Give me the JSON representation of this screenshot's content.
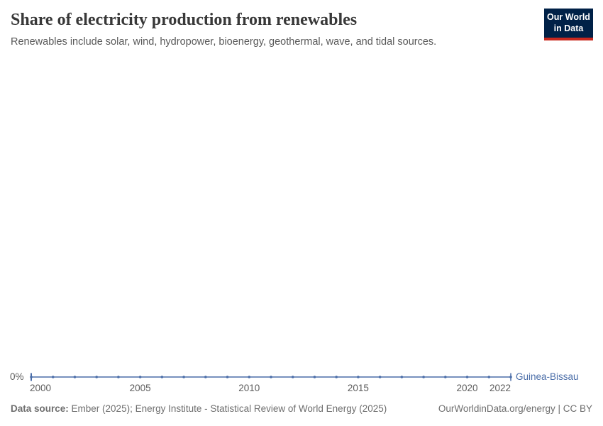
{
  "header": {
    "title": "Share of electricity production from renewables",
    "subtitle": "Renewables include solar, wind, hydropower, bioenergy, geothermal, wave, and tidal sources."
  },
  "logo": {
    "line1": "Our World",
    "line2": "in Data",
    "bg_color": "#002147",
    "accent_color": "#c8281e"
  },
  "footer": {
    "source_label": "Data source:",
    "source_text": " Ember (2025); Energy Institute - Statistical Review of World Energy (2025)",
    "link": "OurWorldinData.org/energy | CC BY"
  },
  "chart_data": {
    "type": "line",
    "title": "Share of electricity production from renewables",
    "subtitle": "Renewables include solar, wind, hydropower, bioenergy, geothermal, wave, and tidal sources.",
    "unit": "%",
    "xlim": [
      2000,
      2022
    ],
    "ylim": [
      0,
      0
    ],
    "grid": false,
    "legend_position": "end-of-line",
    "x_ticks": [
      2000,
      2005,
      2010,
      2015,
      2020,
      2022
    ],
    "y_ticks": [
      "0%"
    ],
    "y_zero_label": "0%",
    "series": [
      {
        "name": "Guinea-Bissau",
        "color": "#4a6da8",
        "x": [
          2000,
          2001,
          2002,
          2003,
          2004,
          2005,
          2006,
          2007,
          2008,
          2009,
          2010,
          2011,
          2012,
          2013,
          2014,
          2015,
          2016,
          2017,
          2018,
          2019,
          2020,
          2021,
          2022
        ],
        "values": [
          0,
          0,
          0,
          0,
          0,
          0,
          0,
          0,
          0,
          0,
          0,
          0,
          0,
          0,
          0,
          0,
          0,
          0,
          0,
          0,
          0,
          0,
          0
        ]
      }
    ]
  }
}
